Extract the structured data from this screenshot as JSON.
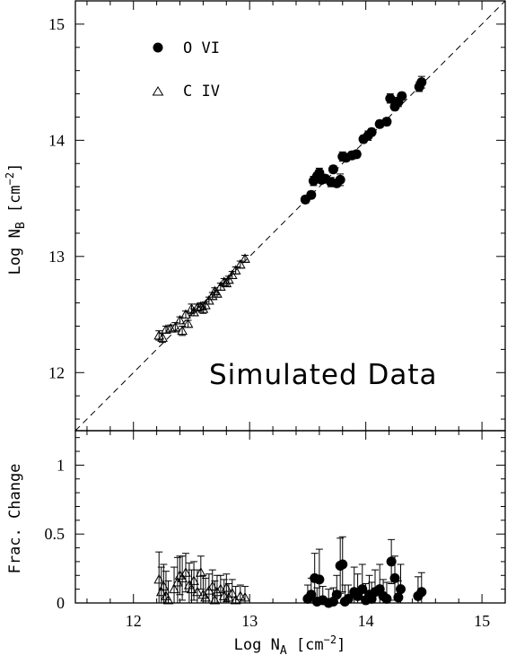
{
  "chart_data": [
    {
      "type": "scatter",
      "xlabel": "Log N",
      "xlabel_sub": "A",
      "xlabel_unit": "[cm",
      "xlabel_exp": "−2",
      "xlabel_close": "]",
      "ylabel": "Log N",
      "ylabel_sub": "B",
      "ylabel_unit": "[cm",
      "ylabel_exp": "−2",
      "ylabel_close": "]",
      "xlim": [
        11.5,
        15.2
      ],
      "ylim": [
        11.5,
        15.2
      ],
      "x_ticks": [
        "12",
        "13",
        "14",
        "15"
      ],
      "y_ticks": [
        "12",
        "13",
        "14",
        "15"
      ],
      "reference_line": "y = x (dashed)",
      "annotation": "Simulated Data",
      "legend_position": "top-left",
      "series": [
        {
          "name": "O VI",
          "marker": "filled-circle",
          "x": [
            13.48,
            13.53,
            13.55,
            13.58,
            13.6,
            13.62,
            13.65,
            13.7,
            13.72,
            13.75,
            13.78,
            13.8,
            13.83,
            13.88,
            13.92,
            13.98,
            14.02,
            14.05,
            14.12,
            14.18,
            14.21,
            14.25,
            14.28,
            14.31,
            14.46,
            14.48
          ],
          "y": [
            13.49,
            13.53,
            13.65,
            13.69,
            13.72,
            13.66,
            13.67,
            13.64,
            13.75,
            13.63,
            13.66,
            13.86,
            13.85,
            13.87,
            13.88,
            14.01,
            14.04,
            14.07,
            14.14,
            14.16,
            14.36,
            14.29,
            14.33,
            14.38,
            14.46,
            14.5
          ],
          "err": [
            0.03,
            0.03,
            0.04,
            0.03,
            0.04,
            0.03,
            0.03,
            0.04,
            0.03,
            0.03,
            0.05,
            0.04,
            0.03,
            0.03,
            0.03,
            0.03,
            0.04,
            0.03,
            0.03,
            0.03,
            0.04,
            0.03,
            0.04,
            0.03,
            0.04,
            0.05
          ]
        },
        {
          "name": "C IV",
          "marker": "open-triangle",
          "x": [
            12.22,
            12.25,
            12.28,
            12.32,
            12.36,
            12.4,
            12.42,
            12.45,
            12.47,
            12.5,
            12.52,
            12.55,
            12.58,
            12.6,
            12.62,
            12.65,
            12.68,
            12.7,
            12.72,
            12.75,
            12.78,
            12.8,
            12.82,
            12.85,
            12.88,
            12.92,
            12.96
          ],
          "y": [
            12.32,
            12.3,
            12.37,
            12.38,
            12.39,
            12.45,
            12.36,
            12.5,
            12.42,
            12.55,
            12.52,
            12.56,
            12.57,
            12.55,
            12.58,
            12.62,
            12.66,
            12.7,
            12.68,
            12.74,
            12.78,
            12.77,
            12.8,
            12.84,
            12.88,
            12.93,
            12.98
          ],
          "err": [
            0.04,
            0.04,
            0.03,
            0.03,
            0.04,
            0.03,
            0.04,
            0.03,
            0.03,
            0.04,
            0.03,
            0.03,
            0.03,
            0.04,
            0.03,
            0.03,
            0.03,
            0.03,
            0.03,
            0.03,
            0.03,
            0.03,
            0.03,
            0.03,
            0.03,
            0.03,
            0.03
          ]
        }
      ]
    },
    {
      "type": "scatter",
      "xlabel": "Log N",
      "xlabel_sub": "A",
      "ylabel": "Frac. Change",
      "xlim": [
        11.5,
        15.2
      ],
      "ylim": [
        0,
        1.25
      ],
      "x_ticks": [
        "12",
        "13",
        "14",
        "15"
      ],
      "y_ticks": [
        "0",
        "0.5",
        "1"
      ],
      "series": [
        {
          "name": "O VI",
          "marker": "filled-circle",
          "x": [
            13.5,
            13.53,
            13.56,
            13.58,
            13.6,
            13.63,
            13.68,
            13.72,
            13.75,
            13.78,
            13.8,
            13.82,
            13.85,
            13.9,
            13.93,
            13.97,
            14.0,
            14.03,
            14.05,
            14.08,
            14.12,
            14.15,
            14.18,
            14.22,
            14.25,
            14.28,
            14.3,
            14.45,
            14.48
          ],
          "y": [
            0.03,
            0.06,
            0.18,
            0.01,
            0.17,
            0.02,
            0.0,
            0.01,
            0.06,
            0.27,
            0.28,
            0.01,
            0.03,
            0.08,
            0.05,
            0.1,
            0.02,
            0.06,
            0.03,
            0.08,
            0.1,
            0.05,
            0.03,
            0.3,
            0.18,
            0.04,
            0.1,
            0.05,
            0.08
          ],
          "err_up": [
            0.1,
            0.12,
            0.18,
            0.1,
            0.22,
            0.1,
            0.1,
            0.1,
            0.14,
            0.2,
            0.2,
            0.12,
            0.1,
            0.18,
            0.16,
            0.18,
            0.12,
            0.14,
            0.12,
            0.16,
            0.18,
            0.12,
            0.12,
            0.16,
            0.16,
            0.12,
            0.18,
            0.14,
            0.14
          ]
        },
        {
          "name": "C IV",
          "marker": "open-triangle",
          "x": [
            12.22,
            12.24,
            12.26,
            12.28,
            12.3,
            12.35,
            12.38,
            12.4,
            12.42,
            12.45,
            12.48,
            12.5,
            12.52,
            12.55,
            12.58,
            12.6,
            12.62,
            12.65,
            12.68,
            12.7,
            12.72,
            12.75,
            12.78,
            12.8,
            12.82,
            12.85,
            12.88,
            12.92,
            12.96
          ],
          "y": [
            0.17,
            0.08,
            0.12,
            0.05,
            0.02,
            0.1,
            0.15,
            0.2,
            0.18,
            0.22,
            0.13,
            0.1,
            0.16,
            0.08,
            0.22,
            0.06,
            0.04,
            0.09,
            0.12,
            0.02,
            0.08,
            0.1,
            0.05,
            0.11,
            0.04,
            0.07,
            0.02,
            0.05,
            0.04
          ],
          "err_up": [
            0.2,
            0.18,
            0.16,
            0.18,
            0.14,
            0.16,
            0.18,
            0.14,
            0.16,
            0.14,
            0.16,
            0.14,
            0.14,
            0.16,
            0.12,
            0.14,
            0.14,
            0.12,
            0.12,
            0.14,
            0.12,
            0.1,
            0.12,
            0.1,
            0.1,
            0.1,
            0.1,
            0.08,
            0.08
          ]
        }
      ]
    }
  ]
}
